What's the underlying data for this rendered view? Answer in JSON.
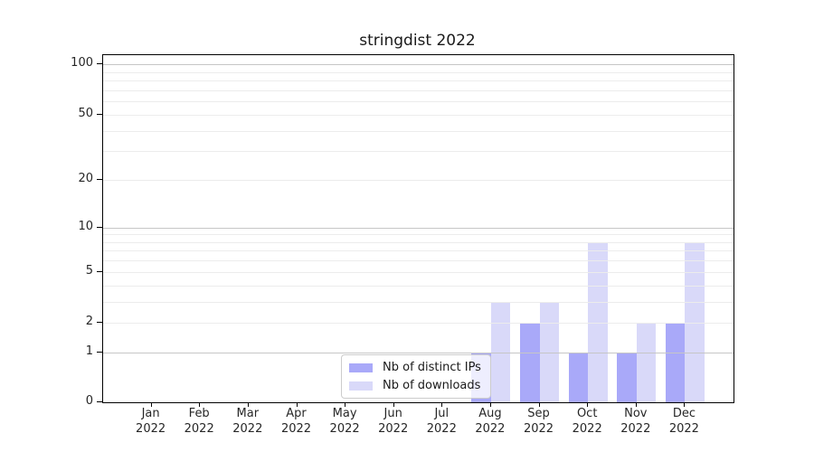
{
  "title": "stringdist 2022",
  "chart_data": {
    "type": "bar",
    "title": "stringdist 2022",
    "categories": [
      "Jan 2022",
      "Feb 2022",
      "Mar 2022",
      "Apr 2022",
      "May 2022",
      "Jun 2022",
      "Jul 2022",
      "Aug 2022",
      "Sep 2022",
      "Oct 2022",
      "Nov 2022",
      "Dec 2022"
    ],
    "series": [
      {
        "name": "Nb of distinct IPs",
        "color": "#a9a9f9",
        "values": [
          0,
          0,
          0,
          0,
          0,
          0,
          0,
          1,
          2,
          1,
          1,
          2
        ]
      },
      {
        "name": "Nb of downloads",
        "color": "#d9d9f9",
        "values": [
          0,
          0,
          0,
          0,
          0,
          0,
          0,
          3,
          3,
          8,
          2,
          8
        ]
      }
    ],
    "yscale": "log1p",
    "ylim": [
      0,
      114
    ],
    "yticks": [
      0,
      1,
      2,
      5,
      10,
      20,
      50,
      100
    ],
    "gridlines_major": [
      1,
      10,
      100
    ],
    "gridlines_minor": [
      2,
      3,
      4,
      5,
      6,
      7,
      8,
      9,
      20,
      30,
      40,
      50,
      60,
      70,
      80,
      90
    ],
    "grid": "on",
    "legend_position": "lower center"
  },
  "legend": {
    "items": [
      {
        "label": "Nb of distinct IPs",
        "color": "#a9a9f9"
      },
      {
        "label": "Nb of downloads",
        "color": "#d9d9f9"
      }
    ]
  },
  "colors": {
    "background": "#ffffff",
    "spine": "#000000",
    "major_grid": "#c6c6c6",
    "minor_grid": "#ececec",
    "text": "#262626",
    "legend_border": "#cccccc"
  }
}
